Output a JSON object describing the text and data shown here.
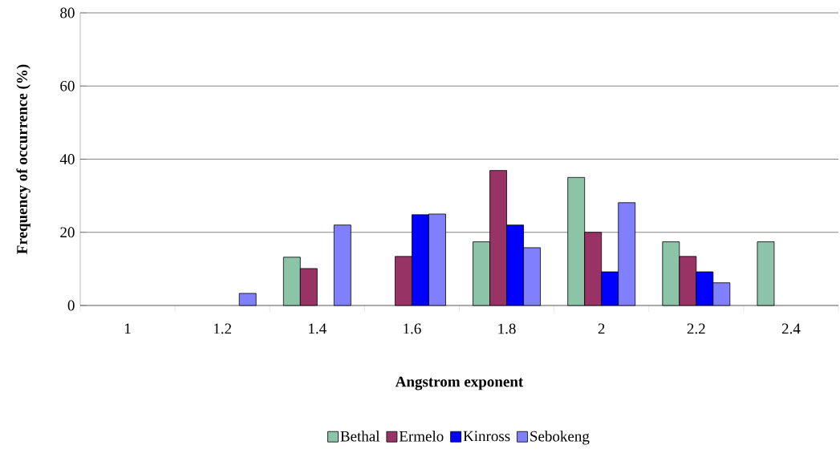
{
  "chart_data": {
    "type": "bar",
    "xlabel": "Angstrom exponent",
    "ylabel": "Frequency of occurrence (%)",
    "categories": [
      "1",
      "1.2",
      "1.4",
      "1.6",
      "1.8",
      "2",
      "2.2",
      "2.4"
    ],
    "series": [
      {
        "name": "Bethal",
        "color": "#8cc4a8",
        "values": [
          0,
          0,
          13.2,
          0,
          17.4,
          35,
          17.4,
          17.4
        ]
      },
      {
        "name": "Ermelo",
        "color": "#993366",
        "values": [
          0,
          0,
          10.1,
          13.4,
          36.9,
          20,
          13.4,
          0
        ]
      },
      {
        "name": "Kinross",
        "color": "#0000ff",
        "values": [
          0,
          0,
          0,
          24.8,
          22,
          9.2,
          9.2,
          0
        ]
      },
      {
        "name": "Sebokeng",
        "color": "#8080ff",
        "values": [
          0,
          3.3,
          22,
          25,
          15.8,
          28.1,
          6.2,
          0
        ]
      }
    ],
    "ylim": [
      0,
      80
    ],
    "yticks": [
      0,
      20,
      40,
      60,
      80
    ],
    "grid": "y",
    "legend": "bottom"
  }
}
